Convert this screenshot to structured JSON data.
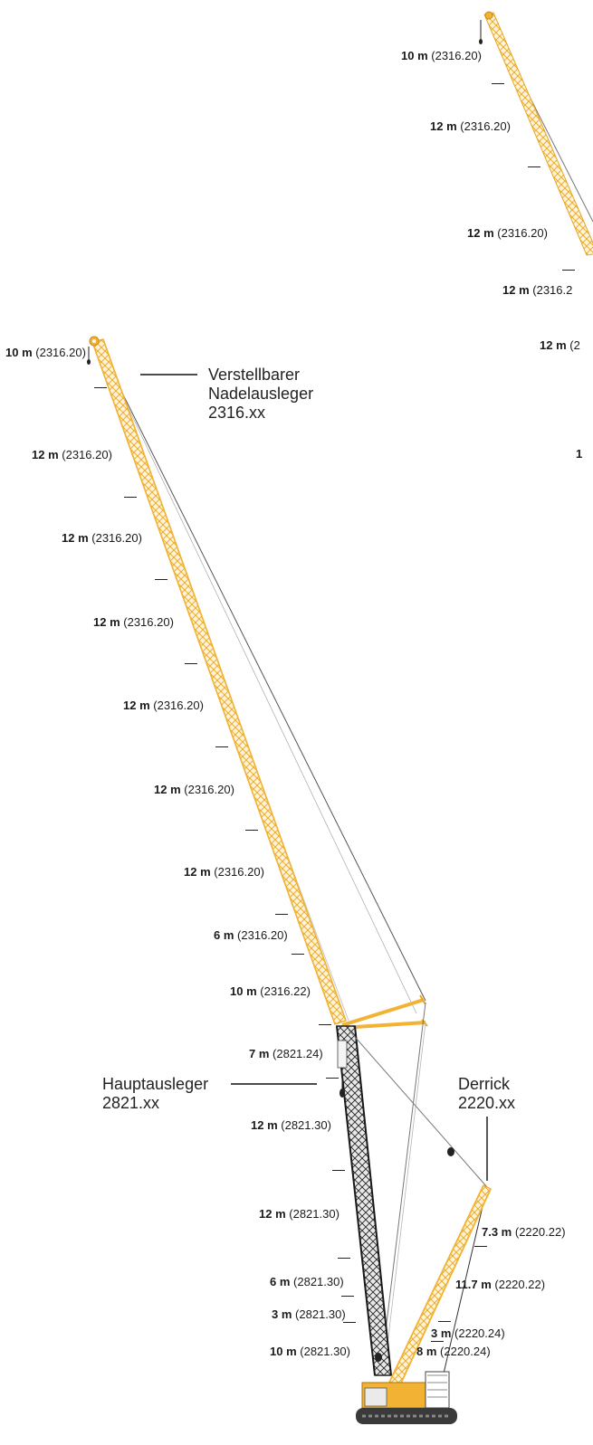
{
  "colors": {
    "boom_yellow": "#f2b233",
    "main_boom_black": "#2a2a2a",
    "rope_gray": "#8a8a8a",
    "label_text": "#1a1a1a"
  },
  "luffing_jib_segments_left": [
    {
      "len": "10 m",
      "code": "(2316.20)"
    },
    {
      "len": "12 m",
      "code": "(2316.20)"
    },
    {
      "len": "12 m",
      "code": "(2316.20)"
    },
    {
      "len": "12 m",
      "code": "(2316.20)"
    },
    {
      "len": "12 m",
      "code": "(2316.20)"
    },
    {
      "len": "12 m",
      "code": "(2316.20)"
    },
    {
      "len": "12 m",
      "code": "(2316.20)"
    },
    {
      "len": "6 m",
      "code": "(2316.20)"
    },
    {
      "len": "10 m",
      "code": "(2316.22)"
    }
  ],
  "luffing_jib_segments_top": [
    {
      "len": "10 m",
      "code": "(2316.20)"
    },
    {
      "len": "12 m",
      "code": "(2316.20)"
    },
    {
      "len": "12 m",
      "code": "(2316.20)"
    },
    {
      "len": "12 m",
      "code": "(2316.2"
    },
    {
      "len": "12 m",
      "code": "(2"
    },
    {
      "len": "1",
      "code": ""
    }
  ],
  "main_boom_segments": [
    {
      "len": "7 m",
      "code": "(2821.24)"
    },
    {
      "len": "12 m",
      "code": "(2821.30)"
    },
    {
      "len": "12 m",
      "code": "(2821.30)"
    },
    {
      "len": "6 m",
      "code": "(2821.30)"
    },
    {
      "len": "3 m",
      "code": "(2821.30)"
    },
    {
      "len": "10 m",
      "code": "(2821.30)"
    }
  ],
  "derrick_segments": [
    {
      "len": "7.3 m",
      "code": "(2220.22)"
    },
    {
      "len": "11.7 m",
      "code": "(2220.22)"
    },
    {
      "len": "3 m",
      "code": "(2220.24)"
    },
    {
      "len": "8 m",
      "code": "(2220.24)"
    }
  ],
  "callouts": {
    "luffing_jib": {
      "line1": "Verstellbarer",
      "line2": "Nadelausleger",
      "line3": "2316.xx"
    },
    "main_boom": {
      "line1": "Hauptausleger",
      "line2": "2821.xx"
    },
    "derrick": {
      "line1": "Derrick",
      "line2": "2220.xx"
    }
  }
}
